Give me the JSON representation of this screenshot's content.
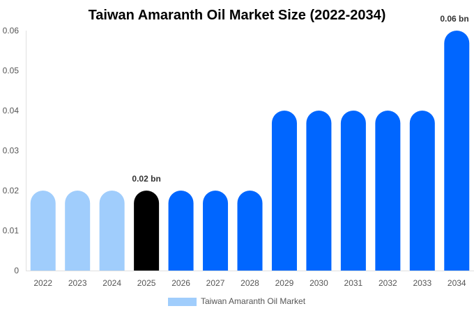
{
  "chart_data": {
    "type": "bar",
    "title": "Taiwan Amaranth Oil Market Size (2022-2034)",
    "categories": [
      "2022",
      "2023",
      "2024",
      "2025",
      "2026",
      "2027",
      "2028",
      "2029",
      "2030",
      "2031",
      "2032",
      "2033",
      "2034"
    ],
    "series": [
      {
        "name": "Taiwan Amaranth Oil Market",
        "values": [
          0.02,
          0.02,
          0.02,
          0.02,
          0.02,
          0.02,
          0.02,
          0.04,
          0.04,
          0.04,
          0.04,
          0.04,
          0.06
        ]
      }
    ],
    "data_labels": {
      "3": "0.02 bn",
      "12": "0.06 bn"
    },
    "bar_colors": [
      "#a0cdfc",
      "#a0cdfc",
      "#a0cdfc",
      "#000000",
      "#0066ff",
      "#0066ff",
      "#0066ff",
      "#0066ff",
      "#0066ff",
      "#0066ff",
      "#0066ff",
      "#0066ff",
      "#0066ff"
    ],
    "legend_color": "#a0cdfc",
    "ylim": [
      0,
      0.06
    ],
    "yticks": [
      "0",
      "0.01",
      "0.02",
      "0.03",
      "0.04",
      "0.05",
      "0.06"
    ],
    "grid": false,
    "legend_position": "bottom"
  }
}
